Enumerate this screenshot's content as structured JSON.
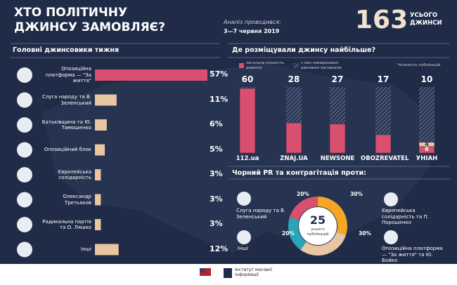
{
  "header": {
    "title": "ХТО ПОЛІТИЧНУ ДЖИНСУ ЗАМОВЛЯЄ?",
    "period_label": "Аналіз проводився:",
    "period": "3—7 червня 2019",
    "total": "163",
    "total_label": "УСЬОГО ДЖИНСИ"
  },
  "chart_data": [
    {
      "type": "bar",
      "orientation": "horizontal",
      "title": "Головні джинсовики тижня",
      "categories": [
        "Опозиційна платформа — \"За життя\"",
        "Слуга народу та В. Зеленський",
        "Батьківщина та Ю. Тимошенко",
        "Опозиційний блок",
        "Європейська солідарність",
        "Олександр Третьяков",
        "Радикальна партія та О. Ляшко",
        "Інші"
      ],
      "values": [
        57,
        11,
        6,
        5,
        3,
        3,
        3,
        12
      ],
      "value_labels": [
        "57%",
        "11%",
        "6%",
        "5%",
        "3%",
        "3%",
        "3%",
        "12%"
      ],
      "colors": [
        "#d94f6f",
        "#e9c6a2",
        "#e9c6a2",
        "#e9c6a2",
        "#e9c6a2",
        "#e9c6a2",
        "#e9c6a2",
        "#e9c6a2"
      ]
    },
    {
      "type": "bar",
      "stacked": true,
      "title": "Де розміщували джинсу найбільше?",
      "note": "*кількість публікацій",
      "categories": [
        "112.ua",
        "ZNAJ.UA",
        "NEWSONE",
        "OBOZREVATEL",
        "УНІАН"
      ],
      "totals": [
        60,
        28,
        27,
        17,
        10
      ],
      "series": [
        {
          "name": "загальна кількість джинси",
          "color": "#d94f6f",
          "values": [
            60,
            28,
            27,
            17,
            6
          ]
        },
        {
          "name": "з них немарковані рекламні матеріали",
          "color": "#e9c6a2",
          "values": [
            null,
            null,
            null,
            null,
            4
          ]
        }
      ]
    },
    {
      "type": "pie",
      "donut": true,
      "title": "Чорний PR та контрагітація проти:",
      "total": 25,
      "total_label": "усього публікацій",
      "categories": [
        "Європейська солідарність та П. Порошенко",
        "Опозиційна платформа — \"За життя\" та Ю. Бойко",
        "Інші",
        "Слуга народу та В. Зеленський"
      ],
      "values": [
        30,
        30,
        20,
        20
      ],
      "value_labels": [
        "30%",
        "30%",
        "20%",
        "20%"
      ],
      "colors": [
        "#f5a623",
        "#e9c6a2",
        "#2aa5b8",
        "#d94f6f"
      ]
    }
  ],
  "footer": {
    "org": "Інститут масової інформації"
  }
}
